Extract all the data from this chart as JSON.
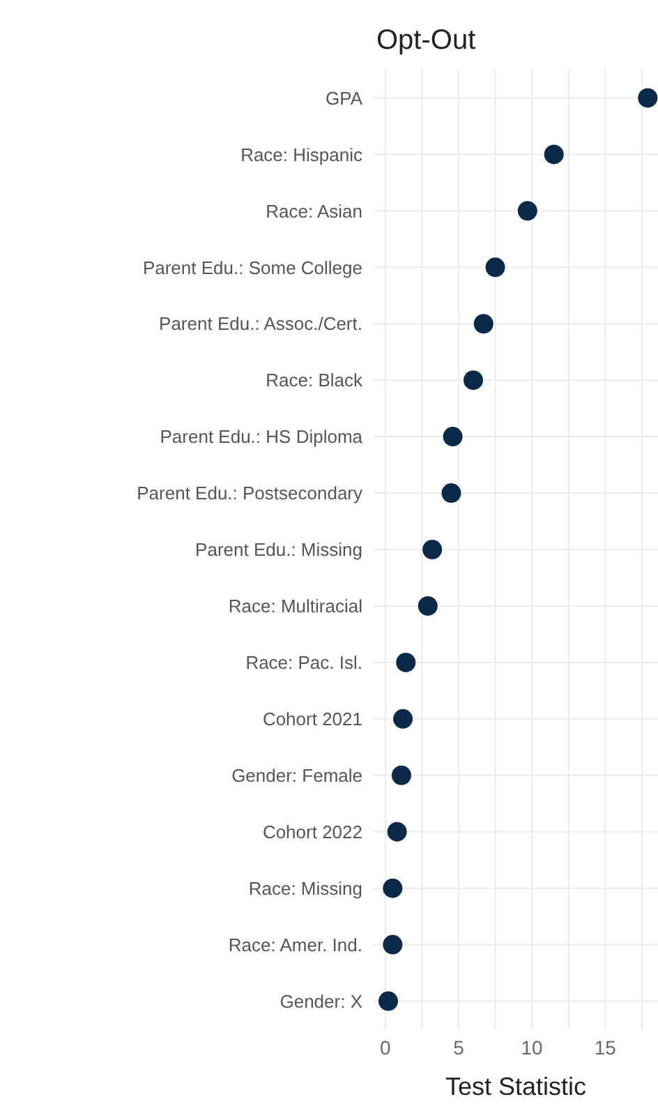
{
  "chart_data": {
    "type": "scatter",
    "title": "Opt-Out",
    "xlabel": "Test Statistic",
    "categories": [
      "GPA",
      "Race: Hispanic",
      "Race: Asian",
      "Parent Edu.: Some College",
      "Parent Edu.: Assoc./Cert.",
      "Race: Black",
      "Parent Edu.: HS Diploma",
      "Parent Edu.: Postsecondary",
      "Parent Edu.: Missing",
      "Race: Multiracial",
      "Race: Pac. Isl.",
      "Cohort 2021",
      "Gender: Female",
      "Cohort 2022",
      "Race: Missing",
      "Race: Amer. Ind.",
      "Gender: X"
    ],
    "values": [
      17.9,
      11.5,
      9.7,
      7.5,
      6.7,
      6.0,
      4.6,
      4.5,
      3.2,
      2.9,
      1.4,
      1.2,
      1.1,
      0.8,
      0.5,
      0.5,
      0.2
    ],
    "color": "#0b2a4a",
    "orientation": "horizontal",
    "marker": "circle",
    "grid": true,
    "xlim": [
      -0.8,
      18.6
    ],
    "xticks": [
      0,
      {
        "value": 2.5,
        "label": null
      },
      5,
      {
        "value": 7.5,
        "label": null
      },
      10,
      {
        "value": 12.5,
        "label": null
      },
      15,
      {
        "value": 17.5,
        "label": null
      }
    ]
  }
}
